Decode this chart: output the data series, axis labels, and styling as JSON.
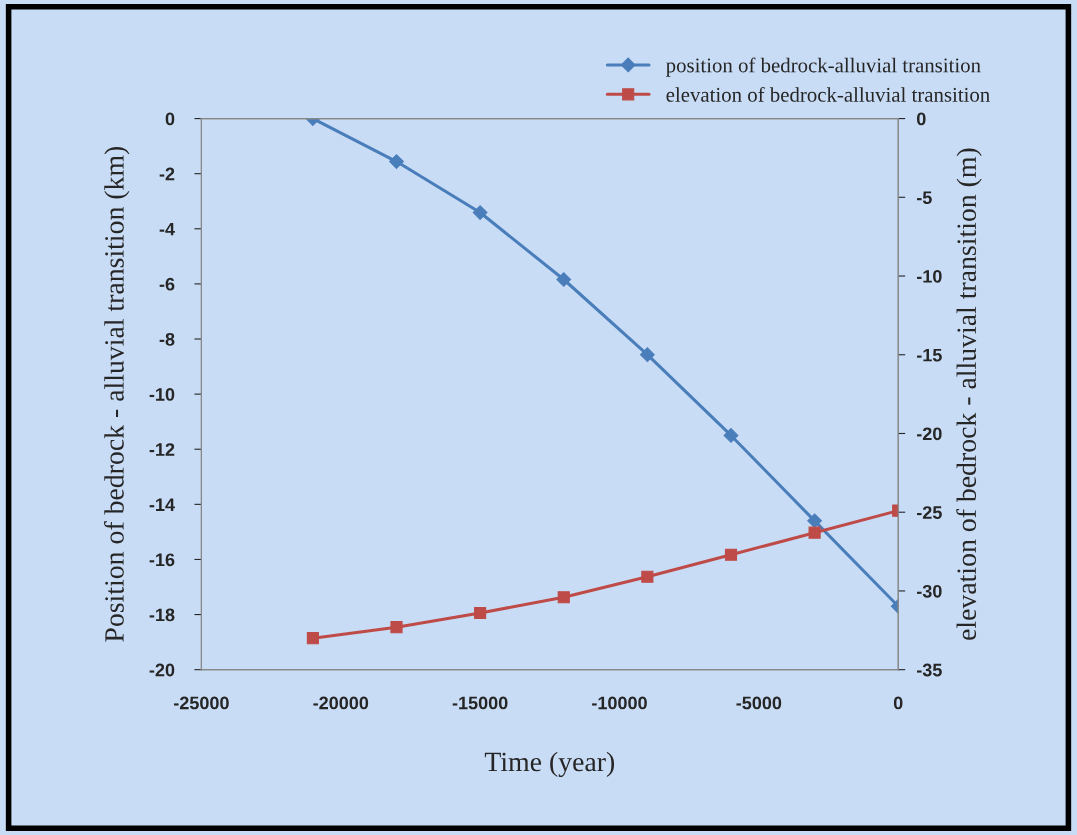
{
  "chart_data": {
    "type": "line",
    "xlabel": "Time (year)",
    "ylabel": "Position of bedrock - alluvial transition (km)",
    "y2label": "elevation of bedrock - alluvial transition (m)",
    "x": [
      -21000,
      -18000,
      -15000,
      -12000,
      -9000,
      -6000,
      -3000,
      0
    ],
    "series": [
      {
        "name": "position of bedrock-alluvial transition",
        "color": "#4a7ebb",
        "marker": "diamond",
        "values": [
          0,
          -1.56,
          -3.41,
          -5.84,
          -8.57,
          -11.5,
          -14.6,
          -17.7
        ]
      },
      {
        "name": "elevation of bedrock-alluvial transition",
        "color": "#be4b48",
        "marker": "square",
        "axis": "y2",
        "values": [
          -33.0,
          -32.3,
          -31.4,
          -30.4,
          -29.1,
          -27.7,
          -26.3,
          -24.9
        ]
      }
    ],
    "xlim": [
      -25000,
      0
    ],
    "xticks": [
      -25000,
      -20000,
      -15000,
      -10000,
      -5000,
      0
    ],
    "ylim": [
      -20,
      0
    ],
    "yticks": [
      -20,
      -18,
      -16,
      -14,
      -12,
      -10,
      -8,
      -6,
      -4,
      -2,
      0
    ],
    "y2lim": [
      -35,
      0
    ],
    "y2ticks": [
      -35,
      -30,
      -25,
      -20,
      -15,
      -10,
      -5,
      0
    ],
    "grid": false,
    "legend": "top right",
    "line_style": "solid"
  }
}
